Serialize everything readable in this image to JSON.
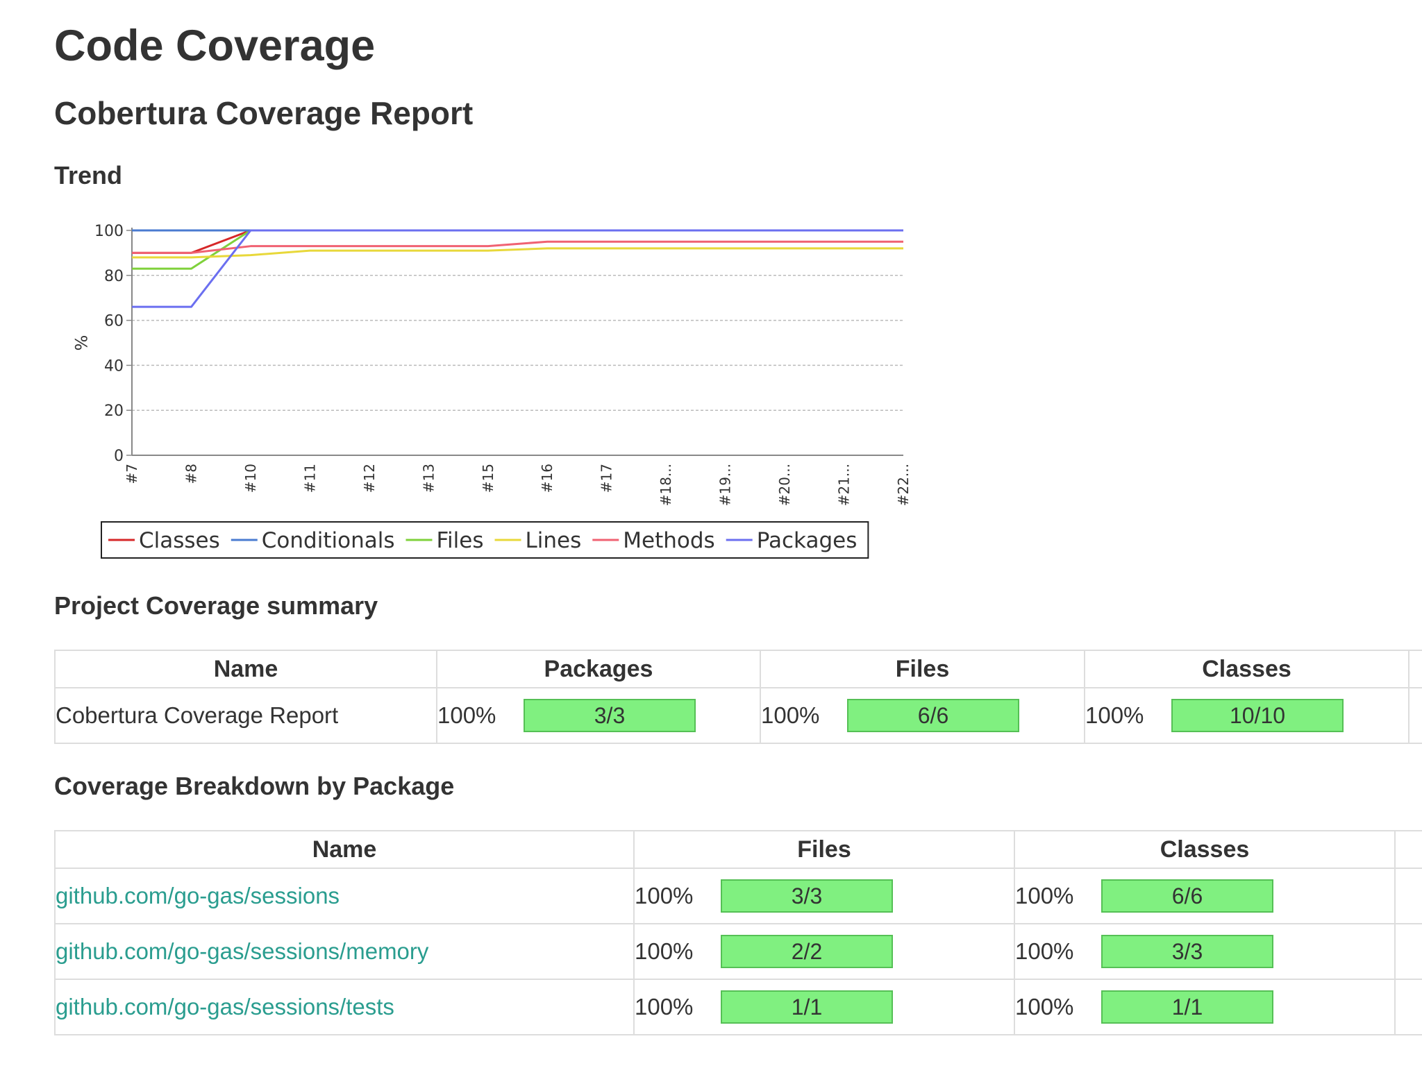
{
  "page": {
    "title": "Code Coverage",
    "report_title": "Cobertura Coverage Report",
    "trend_title": "Trend",
    "summary_title": "Project Coverage summary",
    "breakdown_title": "Coverage Breakdown by Package"
  },
  "colors": {
    "link": "#2a9d8f",
    "bar_fill": "#80f080",
    "grid": "#bbbbbb"
  },
  "chart_data": {
    "type": "line",
    "title": "",
    "xlabel": "",
    "ylabel": "%",
    "ylim": [
      0,
      100
    ],
    "yticks": [
      0,
      20,
      40,
      60,
      80,
      100
    ],
    "grid": true,
    "legend_position": "bottom",
    "categories": [
      "#7",
      "#8",
      "#10",
      "#11",
      "#12",
      "#13",
      "#15",
      "#16",
      "#17",
      "#18...",
      "#19...",
      "#20...",
      "#21...",
      "#22..."
    ],
    "series": [
      {
        "name": "Classes",
        "color": "#d62728",
        "values": [
          90,
          90,
          100,
          100,
          100,
          100,
          100,
          100,
          100,
          100,
          100,
          100,
          100,
          100
        ]
      },
      {
        "name": "Conditionals",
        "color": "#4a7bd0",
        "values": [
          100,
          100,
          100,
          100,
          100,
          100,
          100,
          100,
          100,
          100,
          100,
          100,
          100,
          100
        ]
      },
      {
        "name": "Files",
        "color": "#7fd13b",
        "values": [
          83,
          83,
          100,
          100,
          100,
          100,
          100,
          100,
          100,
          100,
          100,
          100,
          100,
          100
        ]
      },
      {
        "name": "Lines",
        "color": "#e8d83a",
        "values": [
          88,
          88,
          89,
          91,
          91,
          91,
          91,
          92,
          92,
          92,
          92,
          92,
          92,
          92
        ]
      },
      {
        "name": "Methods",
        "color": "#f06272",
        "values": [
          90,
          90,
          93,
          93,
          93,
          93,
          93,
          95,
          95,
          95,
          95,
          95,
          95,
          95
        ]
      },
      {
        "name": "Packages",
        "color": "#6b6ff0",
        "values": [
          66,
          66,
          100,
          100,
          100,
          100,
          100,
          100,
          100,
          100,
          100,
          100,
          100,
          100
        ]
      }
    ]
  },
  "summary": {
    "headers": {
      "name": "Name",
      "packages": "Packages",
      "files": "Files",
      "classes": "Classes"
    },
    "row": {
      "name": "Cobertura Coverage Report",
      "packages": {
        "pct": "100%",
        "ratio": "3/3"
      },
      "files": {
        "pct": "100%",
        "ratio": "6/6"
      },
      "classes": {
        "pct": "100%",
        "ratio": "10/10"
      }
    }
  },
  "breakdown": {
    "headers": {
      "name": "Name",
      "files": "Files",
      "classes": "Classes"
    },
    "rows": [
      {
        "name": "github.com/go-gas/sessions",
        "files": {
          "pct": "100%",
          "ratio": "3/3"
        },
        "classes": {
          "pct": "100%",
          "ratio": "6/6"
        }
      },
      {
        "name": "github.com/go-gas/sessions/memory",
        "files": {
          "pct": "100%",
          "ratio": "2/2"
        },
        "classes": {
          "pct": "100%",
          "ratio": "3/3"
        }
      },
      {
        "name": "github.com/go-gas/sessions/tests",
        "files": {
          "pct": "100%",
          "ratio": "1/1"
        },
        "classes": {
          "pct": "100%",
          "ratio": "1/1"
        }
      }
    ]
  }
}
